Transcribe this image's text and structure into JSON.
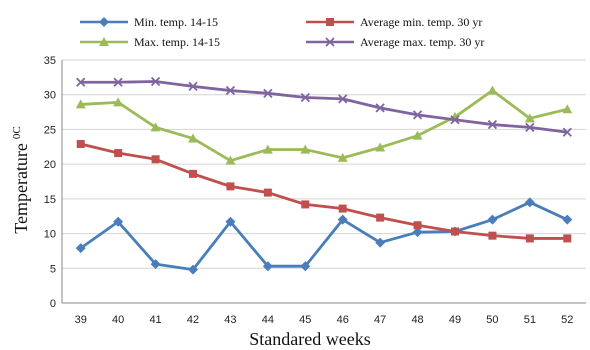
{
  "chart_data": {
    "type": "line",
    "xlabel": "Standared weeks",
    "ylabel": "Temperature",
    "ylabel_unit": "0C",
    "ylim": [
      0,
      35
    ],
    "yticks": [
      0,
      5,
      10,
      15,
      20,
      25,
      30,
      35
    ],
    "grid": "horizontal",
    "legend_placement": "top",
    "categories": [
      "39",
      "40",
      "41",
      "42",
      "43",
      "44",
      "45",
      "46",
      "47",
      "48",
      "49",
      "50",
      "51",
      "52"
    ],
    "series": [
      {
        "name": "Min. temp. 14-15",
        "color": "#4a7ebb",
        "marker": "diamond",
        "values": [
          7.9,
          11.7,
          5.6,
          4.8,
          11.7,
          5.3,
          5.3,
          12.0,
          8.7,
          10.2,
          10.3,
          12.0,
          14.5,
          12.0
        ]
      },
      {
        "name": "Average min. temp. 30 yr",
        "color": "#c0504d",
        "marker": "square",
        "values": [
          22.9,
          21.6,
          20.7,
          18.6,
          16.8,
          15.9,
          14.2,
          13.6,
          12.3,
          11.2,
          10.3,
          9.7,
          9.3,
          9.3
        ]
      },
      {
        "name": "Max. temp. 14-15",
        "color": "#9bbb59",
        "marker": "triangle",
        "values": [
          28.6,
          28.9,
          25.3,
          23.7,
          20.5,
          22.1,
          22.1,
          20.9,
          22.4,
          24.1,
          26.8,
          30.6,
          26.6,
          27.9
        ]
      },
      {
        "name": "Average max. temp. 30 yr",
        "color": "#8064a2",
        "marker": "x",
        "values": [
          31.8,
          31.8,
          31.9,
          31.2,
          30.6,
          30.2,
          29.6,
          29.4,
          28.1,
          27.1,
          26.4,
          25.7,
          25.3,
          24.6
        ]
      }
    ]
  }
}
